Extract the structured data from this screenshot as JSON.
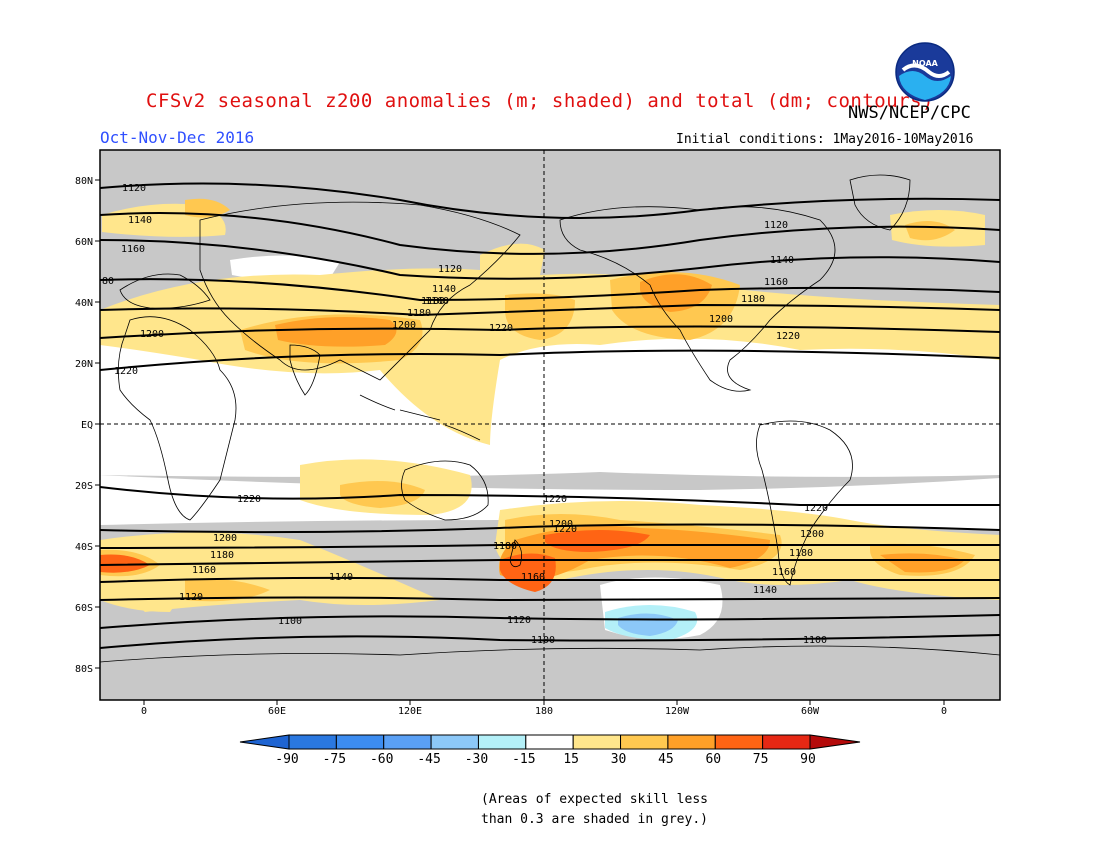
{
  "header": {
    "title": "CFSv2 seasonal z200 anomalies (m; shaded) and total (dm; contours)",
    "agency": "NWS/NCEP/CPC",
    "season": "Oct-Nov-Dec 2016",
    "initial_conditions": "Initial conditions: 1May2016-10May2016",
    "logo_text": "NOAA"
  },
  "map": {
    "lat_labels": [
      "80N",
      "60N",
      "40N",
      "20N",
      "EQ",
      "20S",
      "40S",
      "60S",
      "80S"
    ],
    "lon_labels": [
      "0",
      "60E",
      "120E",
      "180",
      "120W",
      "60W",
      "0"
    ],
    "contour_labels": [
      "1120",
      "1140",
      "1160",
      "80",
      "1200",
      "1220",
      "1120",
      "1140",
      "1160",
      "1180",
      "1180",
      "1200",
      "1220",
      "1120",
      "1140",
      "1160",
      "1180",
      "1200",
      "1220",
      "1220",
      "1220",
      "1200",
      "1180",
      "1160",
      "1120",
      "1140",
      "1100",
      "1220",
      "1200",
      "1180",
      "1160",
      "1120",
      "1100",
      "1220",
      "1200",
      "1180",
      "1160",
      "1140",
      "1100"
    ],
    "background_color": "#c8c8c8",
    "ocean_color": "#ffffff"
  },
  "colorbar": {
    "labels": [
      "-90",
      "-75",
      "-60",
      "-45",
      "-30",
      "-15",
      "15",
      "30",
      "45",
      "60",
      "75",
      "90"
    ],
    "colors": [
      "#1e64d2",
      "#2a78e0",
      "#3c8cf0",
      "#5aa0f5",
      "#8cc8f8",
      "#b4f0f8",
      "#ffffff",
      "#ffe68c",
      "#ffc850",
      "#ffa028",
      "#ff6414",
      "#e62814",
      "#b40a0a"
    ]
  },
  "footnote": {
    "line1": "(Areas of expected skill less",
    "line2": "than 0.3 are shaded in grey.)"
  }
}
